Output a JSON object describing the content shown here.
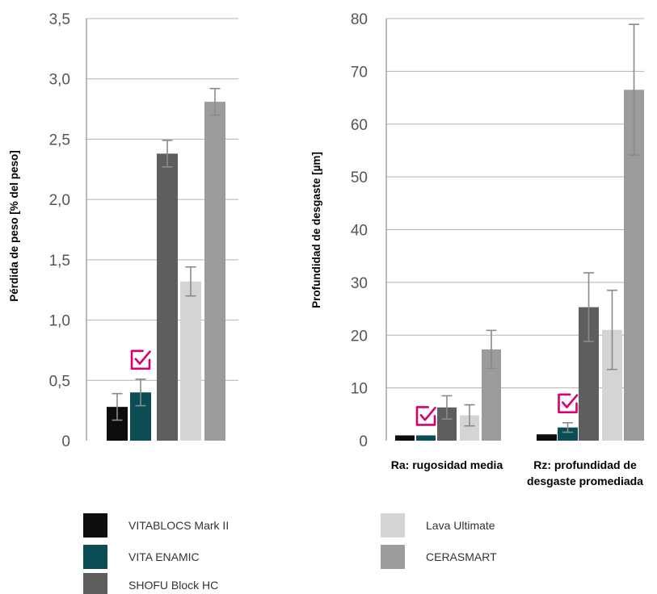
{
  "colors": {
    "VITABLOCS Mark II": "#0d0d0d",
    "VITA ENAMIC": "#0b4d55",
    "SHOFU Block HC": "#5e5e5e",
    "Lava Ultimate": "#d4d4d4",
    "CERASMART": "#9c9c9c",
    "check": "#d6006e"
  },
  "legend": {
    "items": [
      {
        "label": "VITABLOCS Mark II",
        "color": "#0d0d0d"
      },
      {
        "label": "VITA ENAMIC",
        "color": "#0b4d55"
      },
      {
        "label": "SHOFU Block HC",
        "color": "#5e5e5e"
      },
      {
        "label": "Lava Ultimate",
        "color": "#d4d4d4"
      },
      {
        "label": "CERASMART",
        "color": "#9c9c9c"
      }
    ]
  },
  "chart_data": [
    {
      "type": "bar",
      "title": "",
      "ylabel": "Pérdida de peso  [% del peso]",
      "xlabel": "",
      "ylim": [
        0,
        3.5
      ],
      "yticks": [
        "0",
        "0,5",
        "1,0",
        "1,5",
        "2,0",
        "2,5",
        "3,0",
        "3,5"
      ],
      "grid": true,
      "categories": [
        ""
      ],
      "series": [
        {
          "name": "VITABLOCS Mark II",
          "values": [
            0.28
          ],
          "error": [
            0.11
          ]
        },
        {
          "name": "VITA ENAMIC",
          "values": [
            0.4
          ],
          "error": [
            0.11
          ]
        },
        {
          "name": "SHOFU Block HC",
          "values": [
            2.38
          ],
          "error": [
            0.11
          ]
        },
        {
          "name": "Lava Ultimate",
          "values": [
            1.32
          ],
          "error": [
            0.12
          ]
        },
        {
          "name": "CERASMART",
          "values": [
            2.81
          ],
          "error": [
            0.11
          ]
        }
      ],
      "annotations": [
        {
          "type": "check-icon",
          "series": "VITA ENAMIC",
          "category_index": 0
        }
      ]
    },
    {
      "type": "bar",
      "title": "",
      "ylabel": "Profundidad de desgaste  [µm]",
      "xlabel": "",
      "ylim": [
        0,
        80
      ],
      "yticks": [
        "0",
        "10",
        "20",
        "30",
        "40",
        "50",
        "60",
        "70",
        "80"
      ],
      "grid": true,
      "categories": [
        "Ra: rugosidad media",
        "Rz: profundidad de desgaste promediada"
      ],
      "series": [
        {
          "name": "VITABLOCS Mark II",
          "values": [
            1.0,
            1.2
          ],
          "error": [
            null,
            null
          ]
        },
        {
          "name": "VITA ENAMIC",
          "values": [
            1.0,
            2.5
          ],
          "error": [
            null,
            0.9
          ]
        },
        {
          "name": "SHOFU Block HC",
          "values": [
            6.3,
            25.3
          ],
          "error": [
            2.2,
            6.5
          ]
        },
        {
          "name": "Lava Ultimate",
          "values": [
            4.8,
            21.0
          ],
          "error": [
            2.0,
            7.5
          ]
        },
        {
          "name": "CERASMART",
          "values": [
            17.3,
            66.5
          ],
          "error": [
            3.6,
            12.4
          ]
        }
      ],
      "annotations": [
        {
          "type": "check-icon",
          "series": "VITA ENAMIC",
          "category_index": 0
        },
        {
          "type": "check-icon",
          "series": "VITA ENAMIC",
          "category_index": 1
        }
      ]
    }
  ]
}
